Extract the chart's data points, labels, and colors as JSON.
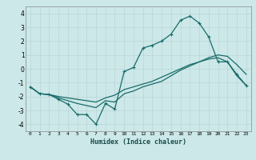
{
  "title": "",
  "xlabel": "Humidex (Indice chaleur)",
  "background_color": "#cce8e8",
  "grid_color": "#b8d4d4",
  "line_color": "#1a6b6b",
  "xlim": [
    -0.5,
    23.5
  ],
  "ylim": [
    -4.5,
    4.5
  ],
  "xticks": [
    0,
    1,
    2,
    3,
    4,
    5,
    6,
    7,
    8,
    9,
    10,
    11,
    12,
    13,
    14,
    15,
    16,
    17,
    18,
    19,
    20,
    21,
    22,
    23
  ],
  "yticks": [
    -4,
    -3,
    -2,
    -1,
    0,
    1,
    2,
    3,
    4
  ],
  "line1_x": [
    0,
    1,
    2,
    3,
    4,
    5,
    6,
    7,
    8,
    9,
    10,
    11,
    12,
    13,
    14,
    15,
    16,
    17,
    18,
    19,
    20,
    21,
    22,
    23
  ],
  "line1_y": [
    -1.3,
    -1.8,
    -1.85,
    -2.2,
    -2.55,
    -3.3,
    -3.3,
    -4.0,
    -2.5,
    -2.9,
    -0.2,
    0.1,
    1.5,
    1.7,
    2.0,
    2.5,
    3.5,
    3.8,
    3.3,
    2.3,
    0.5,
    0.5,
    -0.4,
    -1.2
  ],
  "line2_x": [
    0,
    1,
    2,
    3,
    4,
    5,
    6,
    7,
    8,
    9,
    10,
    11,
    12,
    13,
    14,
    15,
    16,
    17,
    18,
    19,
    20,
    21,
    22,
    23
  ],
  "line2_y": [
    -1.3,
    -1.8,
    -1.85,
    -2.0,
    -2.1,
    -2.2,
    -2.3,
    -2.4,
    -2.1,
    -1.9,
    -1.5,
    -1.3,
    -1.1,
    -0.9,
    -0.6,
    -0.3,
    0.0,
    0.3,
    0.5,
    0.7,
    0.8,
    0.5,
    -0.5,
    -1.2
  ],
  "line3_x": [
    0,
    1,
    2,
    3,
    4,
    5,
    6,
    7,
    8,
    9,
    10,
    11,
    12,
    13,
    14,
    15,
    16,
    17,
    18,
    19,
    20,
    21,
    22,
    23
  ],
  "line3_y": [
    -1.3,
    -1.8,
    -1.85,
    -2.1,
    -2.3,
    -2.5,
    -2.65,
    -2.8,
    -2.3,
    -2.4,
    -1.8,
    -1.6,
    -1.3,
    -1.1,
    -0.9,
    -0.5,
    -0.1,
    0.2,
    0.5,
    0.8,
    1.0,
    0.9,
    0.3,
    -0.4
  ]
}
